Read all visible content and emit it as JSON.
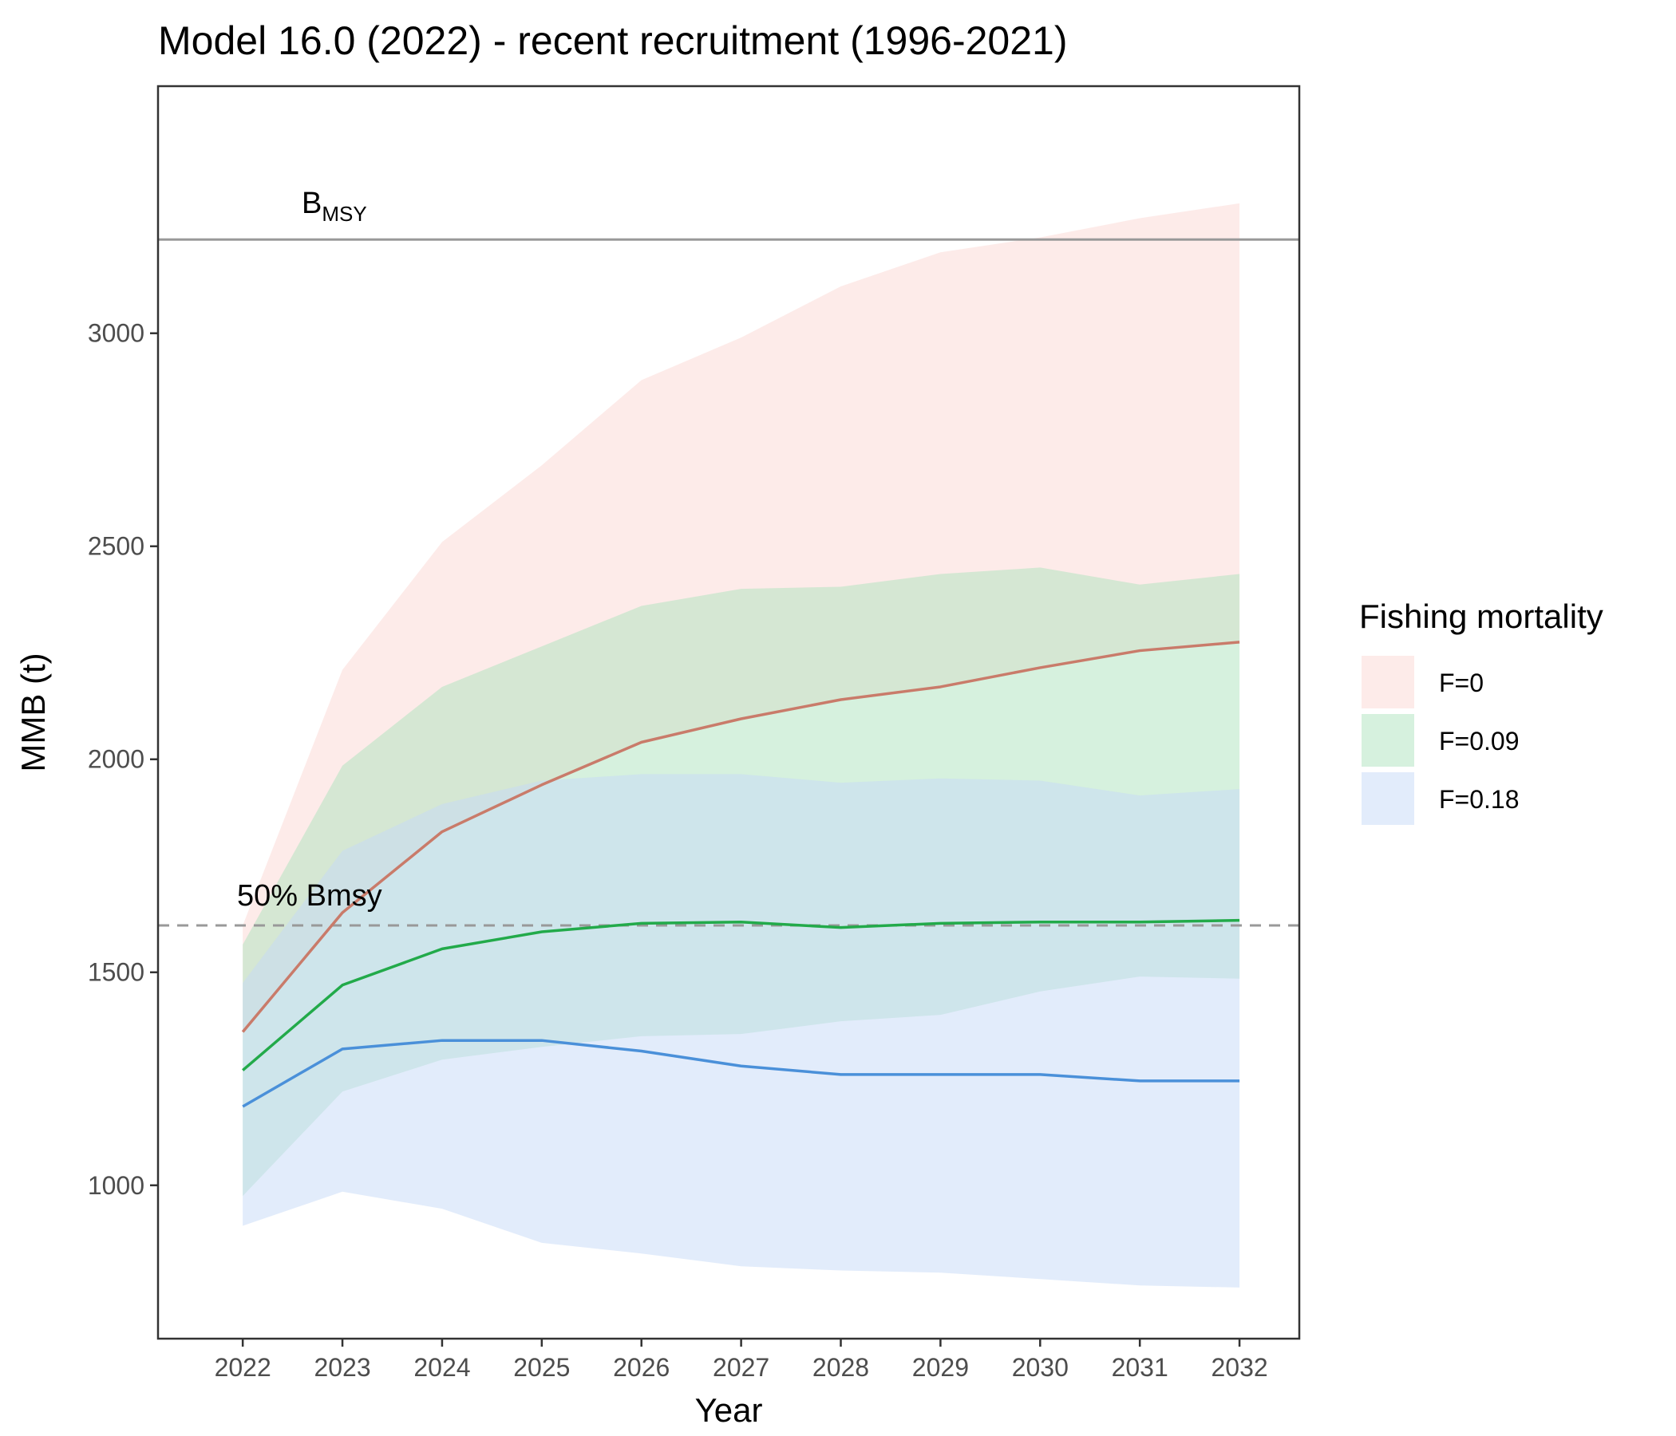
{
  "chart_data": {
    "type": "line",
    "title": "Model 16.0 (2022) - recent recruitment (1996-2021)",
    "xlabel": "Year",
    "ylabel": "MMB (t)",
    "x": [
      2022,
      2023,
      2024,
      2025,
      2026,
      2027,
      2028,
      2029,
      2030,
      2031,
      2032
    ],
    "xlim": [
      2021.15,
      2032.6
    ],
    "ylim": [
      640,
      3580
    ],
    "yticks": [
      1000,
      1500,
      2000,
      2500,
      3000
    ],
    "grid": false,
    "legend": {
      "title": "Fishing mortality",
      "position": "right"
    },
    "series": [
      {
        "name": "F=0",
        "line_color": "#c97b6a",
        "fill_color": "#fbd7d3",
        "values": [
          1360,
          1640,
          1830,
          1940,
          2040,
          2095,
          2140,
          2170,
          2215,
          2255,
          2275
        ],
        "lower": [
          1360,
          1640,
          1830,
          1940,
          2040,
          2095,
          2140,
          2170,
          2215,
          2255,
          2275
        ],
        "upper": [
          1610,
          2210,
          2510,
          2690,
          2890,
          2990,
          3110,
          3190,
          3225,
          3270,
          3305
        ]
      },
      {
        "name": "F=0.09",
        "line_color": "#22aa4a",
        "fill_color": "#aee3bd",
        "values": [
          1270,
          1470,
          1555,
          1595,
          1615,
          1618,
          1605,
          1615,
          1618,
          1618,
          1622
        ],
        "lower": [
          975,
          1220,
          1295,
          1325,
          1350,
          1355,
          1385,
          1400,
          1455,
          1490,
          1485
        ],
        "upper": [
          1565,
          1985,
          2170,
          2265,
          2360,
          2400,
          2405,
          2435,
          2450,
          2410,
          2435
        ]
      },
      {
        "name": "F=0.18",
        "line_color": "#4a90d9",
        "fill_color": "#c6d9f7",
        "values": [
          1185,
          1320,
          1340,
          1340,
          1315,
          1280,
          1260,
          1260,
          1260,
          1245,
          1245
        ],
        "lower": [
          905,
          985,
          945,
          865,
          840,
          810,
          800,
          795,
          780,
          765,
          760
        ],
        "upper": [
          1475,
          1785,
          1895,
          1950,
          1965,
          1965,
          1945,
          1955,
          1950,
          1915,
          1930
        ]
      }
    ],
    "reference_lines": [
      {
        "name": "BMSY",
        "value": 3220,
        "style": "solid",
        "color": "#999999",
        "label_main": "B",
        "label_sub": "MSY"
      },
      {
        "name": "50% Bmsy",
        "value": 1610,
        "style": "dashed",
        "color": "#999999",
        "label_main": "50% Bmsy"
      }
    ]
  }
}
